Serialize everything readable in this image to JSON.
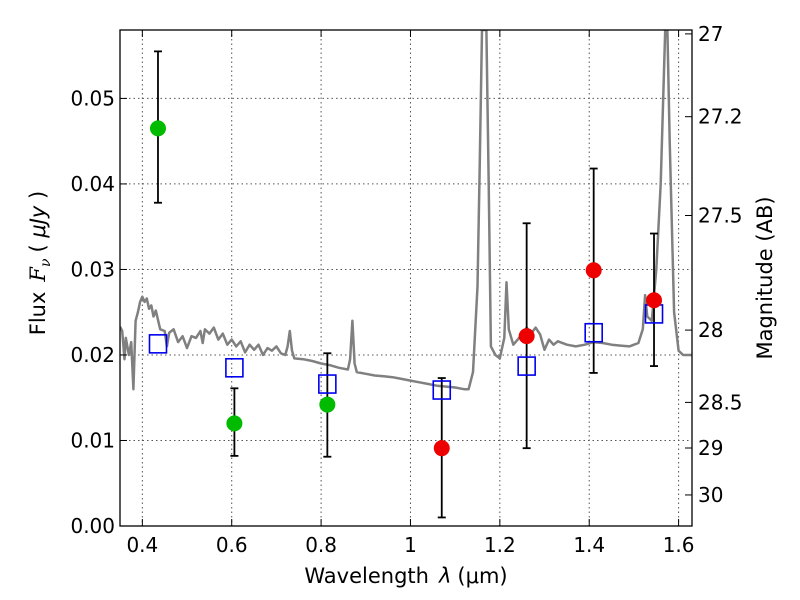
{
  "chart_data": {
    "type": "scatter",
    "xlabel": "Wavelength  λ (μm)",
    "ylabel": "Flux  F_ν  ( μJy )",
    "ylabel_parts": {
      "prefix": "Flux",
      "symbol": "F",
      "subscript": "ν",
      "unit_open": "( ",
      "unit": "μJy",
      "unit_close": " )"
    },
    "xlabel_parts": {
      "prefix": "Wavelength",
      "symbol": "λ",
      "unit": "(μm)"
    },
    "y2label": "Magnitude (AB)",
    "xlim": [
      0.35,
      1.63
    ],
    "ylim": [
      0.0,
      0.058
    ],
    "grid": true,
    "x_ticks": [
      0.4,
      0.6,
      0.8,
      1.0,
      1.2,
      1.4,
      1.6
    ],
    "x_tick_labels": [
      "0.4",
      "0.6",
      "0.8",
      "1",
      "1.2",
      "1.4",
      "1.6"
    ],
    "y_ticks": [
      0.0,
      0.01,
      0.02,
      0.03,
      0.04,
      0.05
    ],
    "y_tick_labels": [
      "0.00",
      "0.01",
      "0.02",
      "0.03",
      "0.04",
      "0.05"
    ],
    "y2_ticks": [
      27,
      27.2,
      27.5,
      28,
      28.5,
      29,
      30
    ],
    "y2_tick_labels": [
      "27",
      "27.2",
      "27.5",
      "28",
      "28.5",
      "29",
      "30"
    ],
    "series": [
      {
        "name": "green points",
        "marker": "circle",
        "color": "#00bb00",
        "points": [
          {
            "x": 0.435,
            "y": 0.0465,
            "ylo": 0.0378,
            "yhi": 0.0555
          },
          {
            "x": 0.606,
            "y": 0.012,
            "ylo": 0.0082,
            "yhi": 0.0161
          },
          {
            "x": 0.814,
            "y": 0.0142,
            "ylo": 0.0081,
            "yhi": 0.0202
          }
        ]
      },
      {
        "name": "red points",
        "marker": "circle",
        "color": "#ee0000",
        "points": [
          {
            "x": 1.07,
            "y": 0.0091,
            "ylo": 0.001,
            "yhi": 0.0173
          },
          {
            "x": 1.26,
            "y": 0.0222,
            "ylo": 0.0091,
            "yhi": 0.0354
          },
          {
            "x": 1.41,
            "y": 0.0299,
            "ylo": 0.0179,
            "yhi": 0.0418
          },
          {
            "x": 1.545,
            "y": 0.0264,
            "ylo": 0.0187,
            "yhi": 0.0342
          }
        ]
      },
      {
        "name": "model photometry",
        "marker": "square-open",
        "color": "#0000ee",
        "points": [
          {
            "x": 0.435,
            "y": 0.0213
          },
          {
            "x": 0.606,
            "y": 0.0185
          },
          {
            "x": 0.814,
            "y": 0.0166
          },
          {
            "x": 1.07,
            "y": 0.0159
          },
          {
            "x": 1.26,
            "y": 0.0187
          },
          {
            "x": 1.41,
            "y": 0.0226
          },
          {
            "x": 1.545,
            "y": 0.0248
          }
        ]
      },
      {
        "name": "model spectrum",
        "marker": "line",
        "color": "#808080",
        "points": [
          [
            0.35,
            0.0233
          ],
          [
            0.355,
            0.0228
          ],
          [
            0.36,
            0.0195
          ],
          [
            0.363,
            0.022
          ],
          [
            0.37,
            0.02
          ],
          [
            0.375,
            0.0215
          ],
          [
            0.38,
            0.016
          ],
          [
            0.385,
            0.024
          ],
          [
            0.39,
            0.025
          ],
          [
            0.395,
            0.0262
          ],
          [
            0.4,
            0.0268
          ],
          [
            0.405,
            0.0262
          ],
          [
            0.41,
            0.0266
          ],
          [
            0.415,
            0.0254
          ],
          [
            0.42,
            0.0258
          ],
          [
            0.425,
            0.0245
          ],
          [
            0.43,
            0.0252
          ],
          [
            0.44,
            0.023
          ],
          [
            0.45,
            0.0228
          ],
          [
            0.455,
            0.021
          ],
          [
            0.46,
            0.0226
          ],
          [
            0.47,
            0.023
          ],
          [
            0.48,
            0.0215
          ],
          [
            0.49,
            0.0222
          ],
          [
            0.5,
            0.0208
          ],
          [
            0.51,
            0.0222
          ],
          [
            0.52,
            0.022
          ],
          [
            0.53,
            0.0228
          ],
          [
            0.535,
            0.0214
          ],
          [
            0.54,
            0.023
          ],
          [
            0.55,
            0.0225
          ],
          [
            0.56,
            0.0232
          ],
          [
            0.57,
            0.0218
          ],
          [
            0.58,
            0.0225
          ],
          [
            0.59,
            0.0212
          ],
          [
            0.6,
            0.0218
          ],
          [
            0.61,
            0.021
          ],
          [
            0.62,
            0.0216
          ],
          [
            0.63,
            0.0203
          ],
          [
            0.64,
            0.0212
          ],
          [
            0.65,
            0.0206
          ],
          [
            0.66,
            0.0212
          ],
          [
            0.67,
            0.02
          ],
          [
            0.68,
            0.0208
          ],
          [
            0.69,
            0.0205
          ],
          [
            0.7,
            0.021
          ],
          [
            0.71,
            0.0202
          ],
          [
            0.72,
            0.02
          ],
          [
            0.725,
            0.021
          ],
          [
            0.73,
            0.0228
          ],
          [
            0.735,
            0.0205
          ],
          [
            0.74,
            0.0196
          ],
          [
            0.76,
            0.0195
          ],
          [
            0.78,
            0.0193
          ],
          [
            0.8,
            0.019
          ],
          [
            0.82,
            0.0188
          ],
          [
            0.84,
            0.0185
          ],
          [
            0.86,
            0.0183
          ],
          [
            0.865,
            0.0195
          ],
          [
            0.87,
            0.024
          ],
          [
            0.875,
            0.019
          ],
          [
            0.88,
            0.018
          ],
          [
            0.9,
            0.0178
          ],
          [
            0.92,
            0.0176
          ],
          [
            0.94,
            0.0175
          ],
          [
            0.96,
            0.0174
          ],
          [
            0.98,
            0.0172
          ],
          [
            1.0,
            0.017
          ],
          [
            1.02,
            0.0168
          ],
          [
            1.04,
            0.0166
          ],
          [
            1.06,
            0.0164
          ],
          [
            1.08,
            0.0163
          ],
          [
            1.1,
            0.0162
          ],
          [
            1.12,
            0.016
          ],
          [
            1.13,
            0.016
          ],
          [
            1.14,
            0.018
          ],
          [
            1.15,
            0.028
          ],
          [
            1.155,
            0.042
          ],
          [
            1.16,
            0.058
          ],
          [
            1.17,
            0.058
          ],
          [
            1.175,
            0.04
          ],
          [
            1.18,
            0.021
          ],
          [
            1.19,
            0.02
          ],
          [
            1.2,
            0.0196
          ],
          [
            1.21,
            0.022
          ],
          [
            1.215,
            0.0285
          ],
          [
            1.22,
            0.023
          ],
          [
            1.23,
            0.0212
          ],
          [
            1.24,
            0.0218
          ],
          [
            1.25,
            0.0225
          ],
          [
            1.26,
            0.0232
          ],
          [
            1.27,
            0.0225
          ],
          [
            1.28,
            0.0232
          ],
          [
            1.29,
            0.0224
          ],
          [
            1.3,
            0.0206
          ],
          [
            1.31,
            0.0218
          ],
          [
            1.32,
            0.0212
          ],
          [
            1.33,
            0.0216
          ],
          [
            1.35,
            0.0212
          ],
          [
            1.37,
            0.021
          ],
          [
            1.39,
            0.0212
          ],
          [
            1.41,
            0.0215
          ],
          [
            1.43,
            0.0214
          ],
          [
            1.45,
            0.0212
          ],
          [
            1.47,
            0.0211
          ],
          [
            1.49,
            0.021
          ],
          [
            1.5,
            0.0212
          ],
          [
            1.51,
            0.0214
          ],
          [
            1.52,
            0.023
          ],
          [
            1.525,
            0.027
          ],
          [
            1.53,
            0.0245
          ],
          [
            1.54,
            0.024
          ],
          [
            1.55,
            0.03
          ],
          [
            1.56,
            0.04
          ],
          [
            1.57,
            0.058
          ],
          [
            1.575,
            0.058
          ],
          [
            1.58,
            0.045
          ],
          [
            1.59,
            0.025
          ],
          [
            1.6,
            0.0205
          ],
          [
            1.61,
            0.02
          ],
          [
            1.63,
            0.02
          ]
        ]
      }
    ]
  }
}
